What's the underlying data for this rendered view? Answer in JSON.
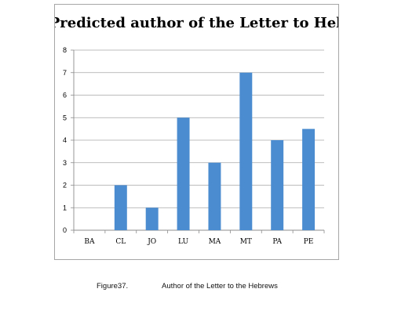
{
  "chart_data": {
    "type": "bar",
    "title": "Predicted author of the Letter to Hebrew",
    "xlabel": "",
    "ylabel": "",
    "categories": [
      "BA",
      "CL",
      "JO",
      "LU",
      "MA",
      "MT",
      "PA",
      "PE"
    ],
    "values": [
      0,
      2,
      1,
      5,
      3,
      7,
      4,
      4.5
    ],
    "ylim": [
      0,
      8
    ],
    "yticks": [
      0,
      1,
      2,
      3,
      4,
      5,
      6,
      7,
      8
    ],
    "grid": true,
    "legend": "none",
    "bar_color": "#4a8ccf"
  },
  "caption": {
    "number": "Figure37.",
    "text": "Author of the Letter to the Hebrews"
  }
}
